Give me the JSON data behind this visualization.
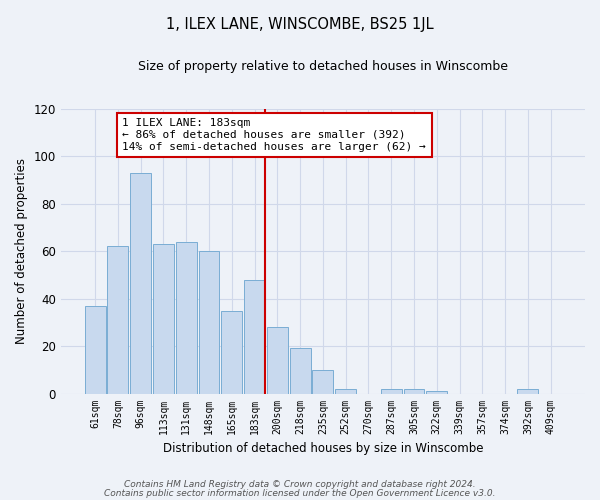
{
  "title": "1, ILEX LANE, WINSCOMBE, BS25 1JL",
  "subtitle": "Size of property relative to detached houses in Winscombe",
  "xlabel": "Distribution of detached houses by size in Winscombe",
  "ylabel": "Number of detached properties",
  "categories": [
    "61sqm",
    "78sqm",
    "96sqm",
    "113sqm",
    "131sqm",
    "148sqm",
    "165sqm",
    "183sqm",
    "200sqm",
    "218sqm",
    "235sqm",
    "252sqm",
    "270sqm",
    "287sqm",
    "305sqm",
    "322sqm",
    "339sqm",
    "357sqm",
    "374sqm",
    "392sqm",
    "409sqm"
  ],
  "values": [
    37,
    62,
    93,
    63,
    64,
    60,
    35,
    48,
    28,
    19,
    10,
    2,
    0,
    2,
    2,
    1,
    0,
    0,
    0,
    2,
    0
  ],
  "bar_color": "#c8d9ee",
  "bar_edge_color": "#7aadd4",
  "annotation_text": "1 ILEX LANE: 183sqm\n← 86% of detached houses are smaller (392)\n14% of semi-detached houses are larger (62) →",
  "annotation_box_color": "#ffffff",
  "annotation_box_edge": "#cc0000",
  "ref_line_color": "#cc0000",
  "ylim": [
    0,
    120
  ],
  "yticks": [
    0,
    20,
    40,
    60,
    80,
    100,
    120
  ],
  "grid_color": "#d0d8ea",
  "bg_color": "#eef2f8",
  "footer1": "Contains HM Land Registry data © Crown copyright and database right 2024.",
  "footer2": "Contains public sector information licensed under the Open Government Licence v3.0."
}
